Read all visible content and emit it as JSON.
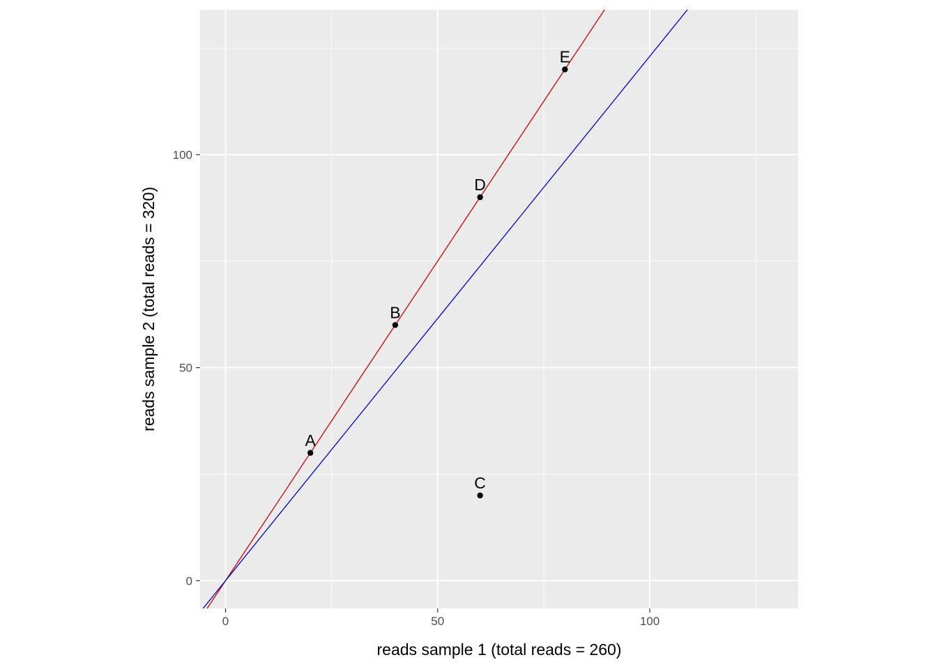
{
  "chart_data": {
    "type": "scatter",
    "title": "",
    "xlabel": "reads sample 1 (total reads = 260)",
    "ylabel": "reads sample 2 (total reads = 320)",
    "xlim": [
      -6,
      135
    ],
    "ylim": [
      -6.5,
      134
    ],
    "x_major_ticks": [
      0,
      50,
      100
    ],
    "x_tick_labels": [
      "0",
      "50",
      "100"
    ],
    "x_minor_ticks": [
      25,
      75,
      125
    ],
    "y_major_ticks": [
      0,
      50,
      100
    ],
    "y_tick_labels": [
      "0",
      "50",
      "100"
    ],
    "y_minor_ticks": [
      25,
      75,
      125
    ],
    "grid": true,
    "panel_background": "#ebebeb",
    "grid_color": "#ffffff",
    "points": [
      {
        "label": "A",
        "x": 20,
        "y": 30
      },
      {
        "label": "B",
        "x": 40,
        "y": 60
      },
      {
        "label": "C",
        "x": 60,
        "y": 20
      },
      {
        "label": "D",
        "x": 60,
        "y": 90
      },
      {
        "label": "E",
        "x": 80,
        "y": 120
      }
    ],
    "point_color": "#000000",
    "lines": [
      {
        "color": "#cc0000",
        "intercept": 0,
        "slope": 1.5
      },
      {
        "color": "#0000cc",
        "intercept": 0,
        "slope": 1.2308
      }
    ]
  }
}
